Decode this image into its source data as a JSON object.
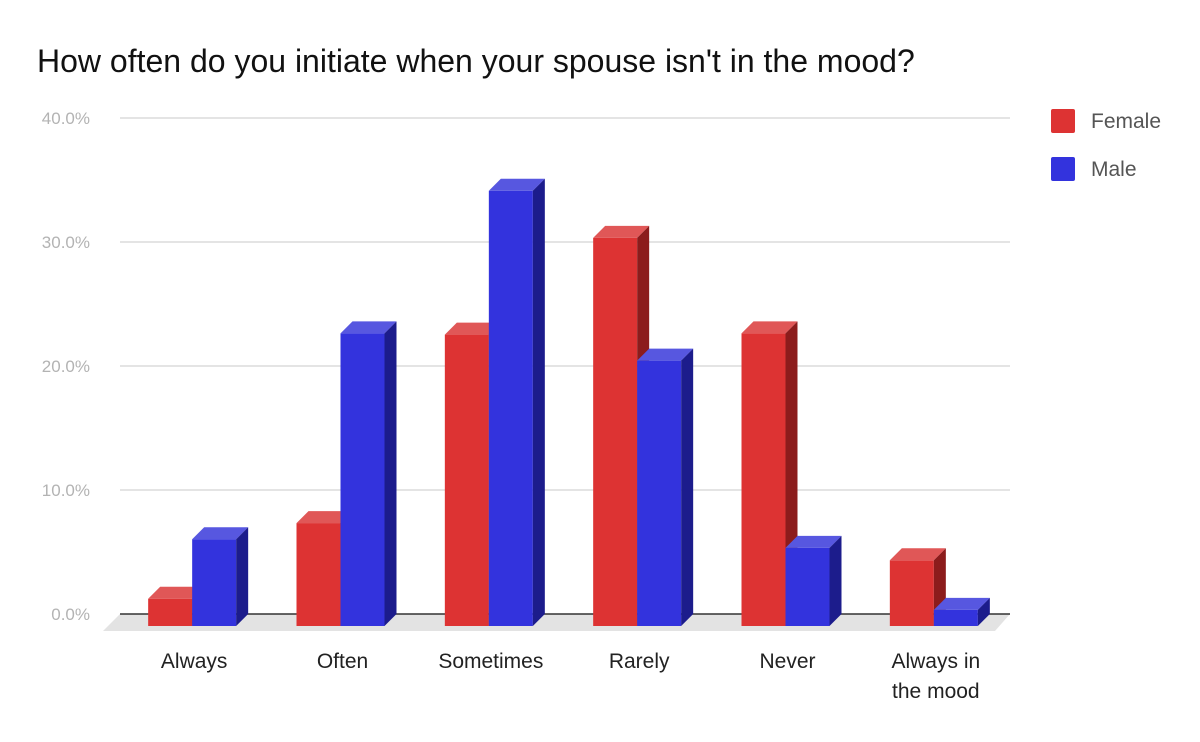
{
  "chart_data": {
    "type": "bar",
    "title": "How often do you initiate when your spouse isn't in the mood?",
    "xlabel": "",
    "ylabel": "",
    "categories": [
      "Always",
      "Often",
      "Sometimes",
      "Rarely",
      "Never",
      "Always in the mood"
    ],
    "category_lines": [
      [
        "Always"
      ],
      [
        "Often"
      ],
      [
        "Sometimes"
      ],
      [
        "Rarely"
      ],
      [
        "Never"
      ],
      [
        "Always in",
        "the mood"
      ]
    ],
    "series": [
      {
        "name": "Female",
        "values": [
          2.2,
          8.3,
          23.5,
          31.3,
          23.6,
          5.3
        ],
        "color": "#dd3333",
        "top_color": "#e05757",
        "side_color": "#8c1c1c"
      },
      {
        "name": "Male",
        "values": [
          7.0,
          23.6,
          35.1,
          21.4,
          6.3,
          1.3
        ],
        "color": "#3333dd",
        "top_color": "#5757e0",
        "side_color": "#1c1c8c"
      }
    ],
    "ylim": [
      0,
      40
    ],
    "y_ticks": [
      "0.0%",
      "10.0%",
      "20.0%",
      "30.0%",
      "40.0%"
    ],
    "grid": true,
    "legend_position": "top-right",
    "style": "3d-bar"
  }
}
